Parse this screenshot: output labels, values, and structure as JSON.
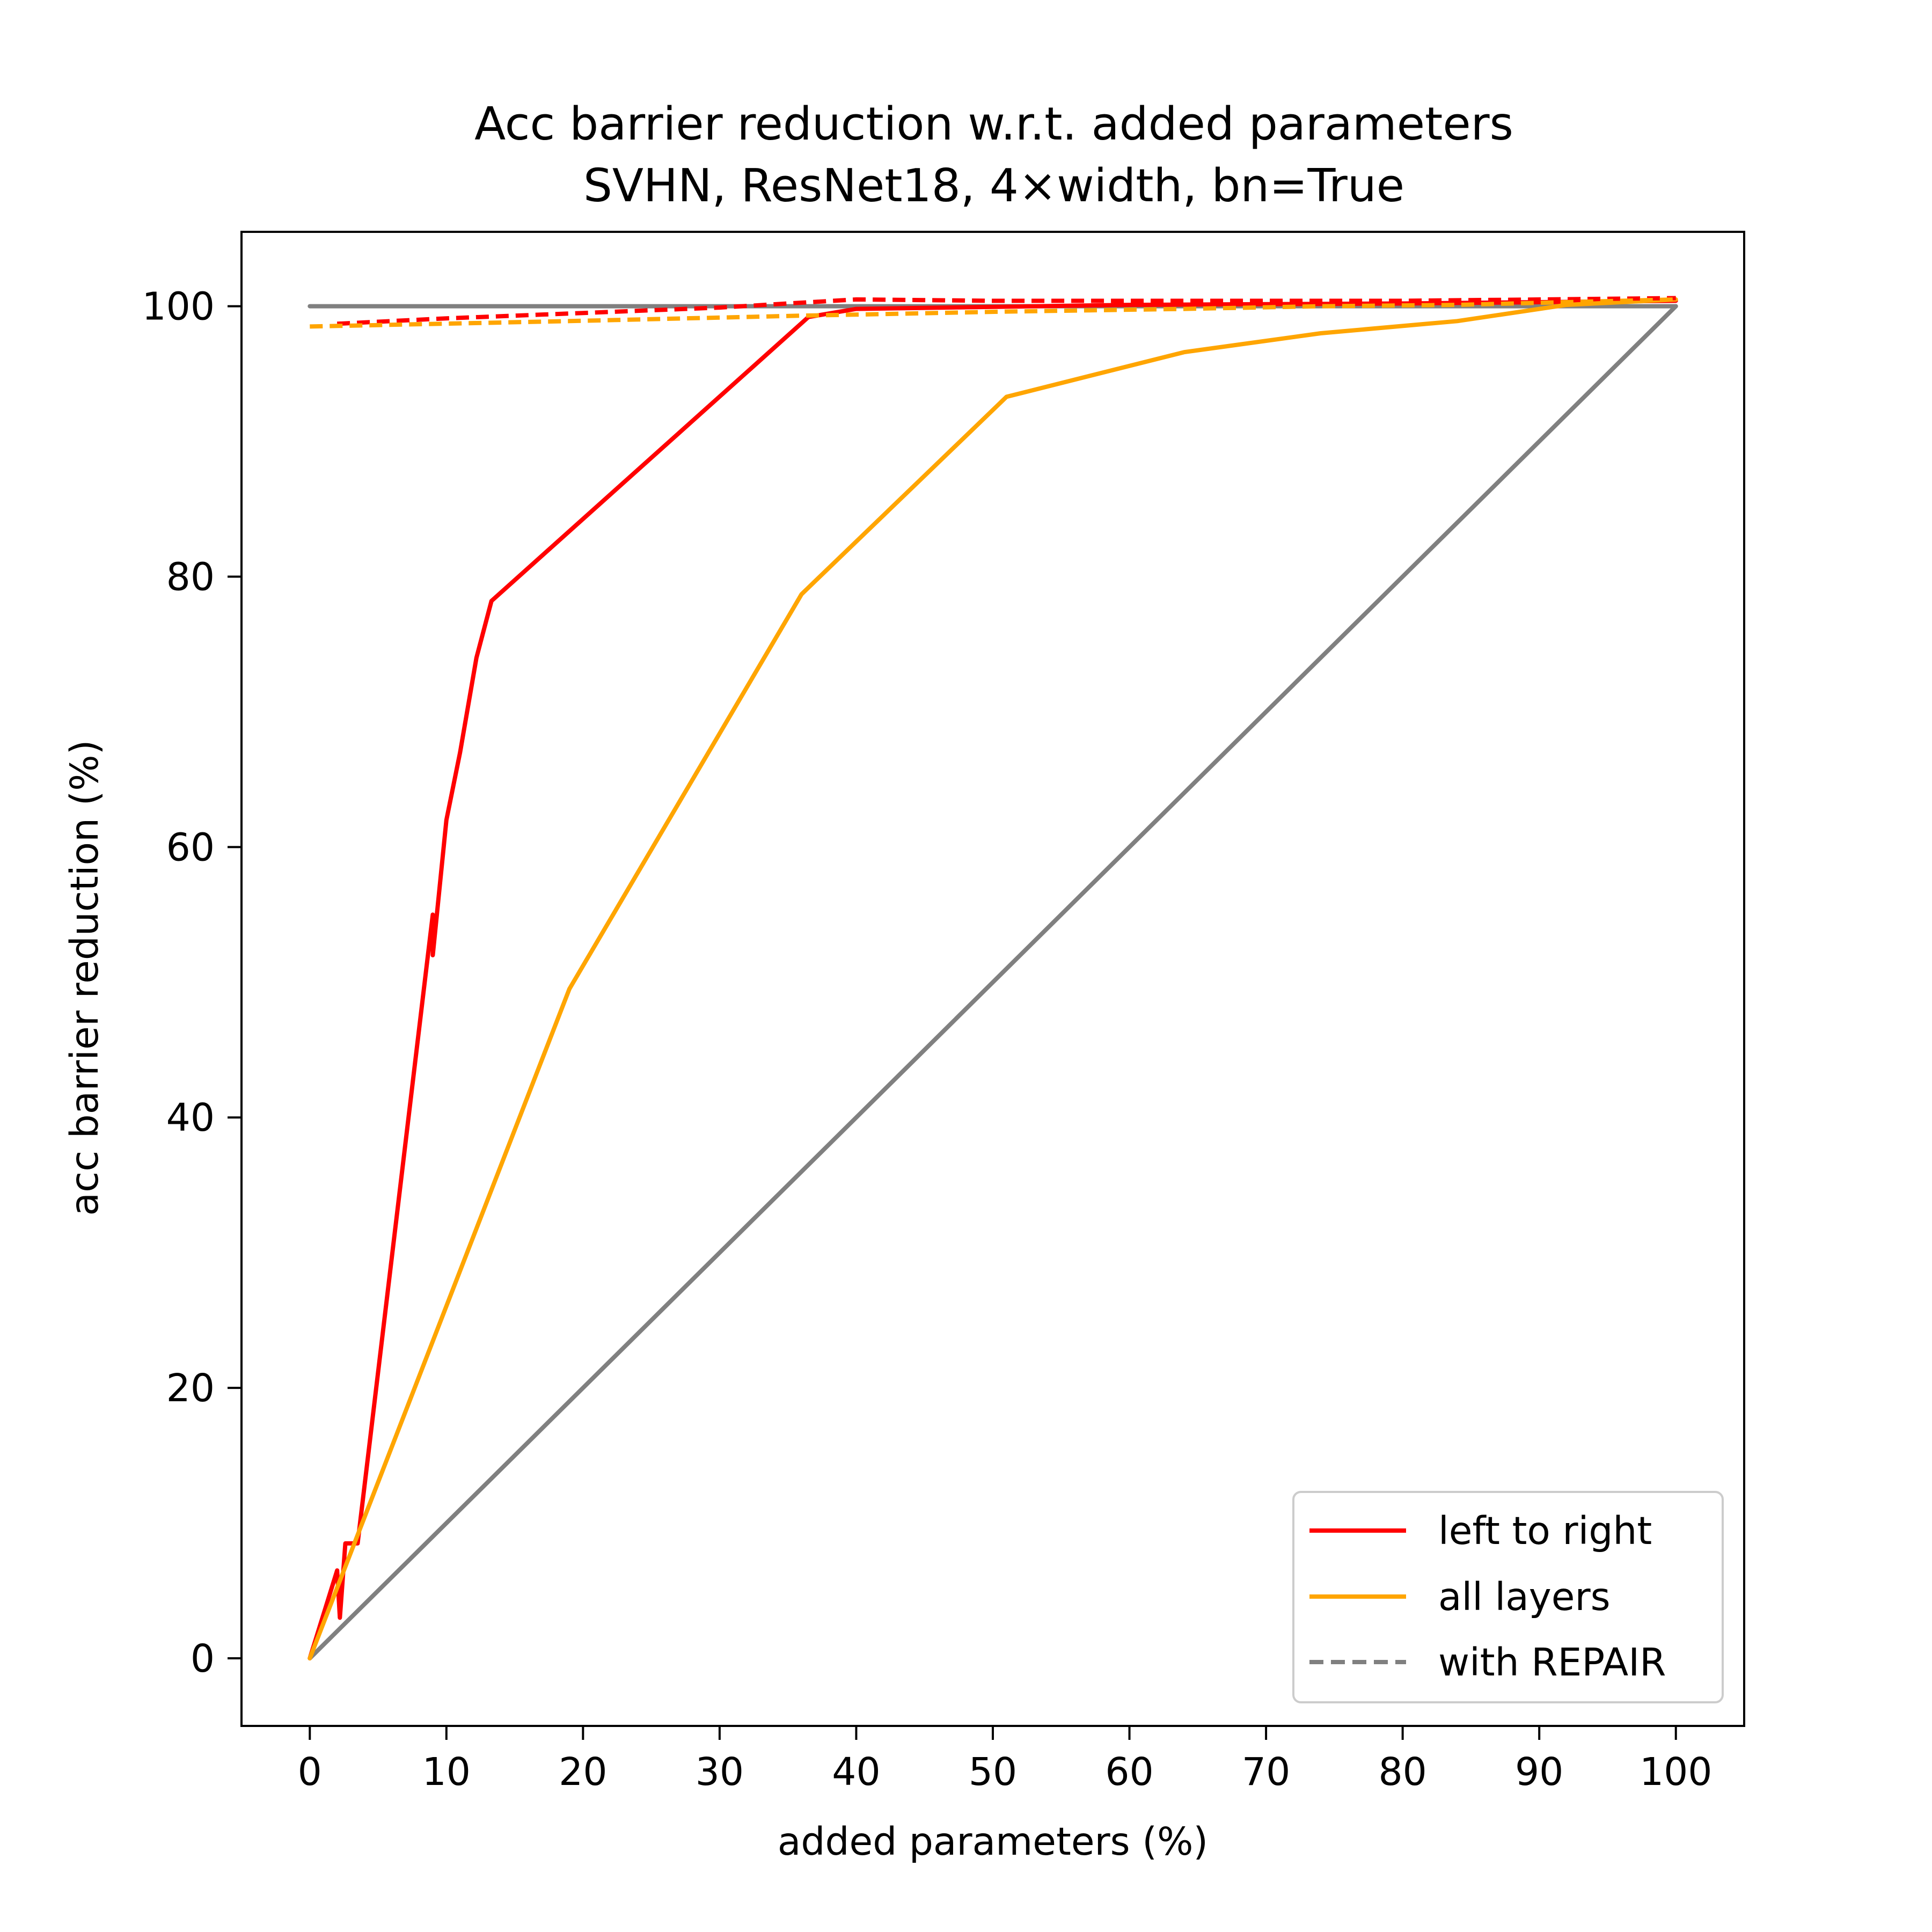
{
  "chart_data": {
    "type": "line",
    "title": [
      "Acc barrier reduction w.r.t. added parameters",
      "SVHN, ResNet18, 4×width, bn=True"
    ],
    "xlabel": "added parameters (%)",
    "ylabel": "acc barrier reduction (%)",
    "xlim": [
      -5,
      105
    ],
    "ylim": [
      -5,
      105.5
    ],
    "xticks": [
      0,
      10,
      20,
      30,
      40,
      50,
      60,
      70,
      80,
      90,
      100
    ],
    "yticks": [
      0,
      20,
      40,
      60,
      80,
      100
    ],
    "grid": false,
    "legend_position": "bottom-right",
    "legend": [
      {
        "label": "left to right",
        "color": "#ff0000",
        "style": "solid"
      },
      {
        "label": "all layers",
        "color": "#ffa500",
        "style": "solid"
      },
      {
        "label": "with REPAIR",
        "color": "#808080",
        "style": "dashed"
      }
    ],
    "series": [
      {
        "color": "#808080",
        "style": "solid",
        "points": [
          [
            0,
            100
          ],
          [
            100,
            100
          ]
        ]
      },
      {
        "color": "#808080",
        "style": "solid",
        "points": [
          [
            0,
            0
          ],
          [
            100,
            100
          ]
        ]
      },
      {
        "name": "left to right",
        "color": "#ff0000",
        "style": "solid",
        "points": [
          [
            0,
            0
          ],
          [
            2.0,
            6.5
          ],
          [
            2.2,
            3.0
          ],
          [
            2.6,
            8.5
          ],
          [
            3.5,
            8.5
          ],
          [
            9.0,
            55.0
          ],
          [
            9.0,
            52.0
          ],
          [
            10.0,
            62.0
          ],
          [
            11.0,
            67.0
          ],
          [
            12.2,
            74.0
          ],
          [
            13.3,
            78.2
          ],
          [
            36.5,
            99.2
          ],
          [
            40,
            99.8
          ],
          [
            60,
            100.1
          ],
          [
            80,
            100.2
          ],
          [
            100,
            100.4
          ]
        ]
      },
      {
        "name": "all layers",
        "color": "#ffa500",
        "style": "solid",
        "points": [
          [
            0,
            0
          ],
          [
            19,
            49.5
          ],
          [
            36,
            78.7
          ],
          [
            51,
            93.3
          ],
          [
            64,
            96.6
          ],
          [
            74,
            98.0
          ],
          [
            84,
            98.9
          ],
          [
            92,
            100.1
          ],
          [
            100,
            100.5
          ]
        ]
      },
      {
        "name": "left to right, with REPAIR",
        "color": "#ff0000",
        "style": "dashed",
        "points": [
          [
            2,
            98.7
          ],
          [
            10,
            99.1
          ],
          [
            20,
            99.5
          ],
          [
            30,
            99.9
          ],
          [
            35,
            100.2
          ],
          [
            40,
            100.5
          ],
          [
            50,
            100.4
          ],
          [
            60,
            100.4
          ],
          [
            70,
            100.4
          ],
          [
            80,
            100.4
          ],
          [
            90,
            100.5
          ],
          [
            100,
            100.6
          ]
        ]
      },
      {
        "name": "all layers, with REPAIR",
        "color": "#ffa500",
        "style": "dashed",
        "points": [
          [
            0,
            98.5
          ],
          [
            19,
            98.9
          ],
          [
            36,
            99.3
          ],
          [
            51,
            99.6
          ],
          [
            64,
            99.8
          ],
          [
            74,
            100.0
          ],
          [
            84,
            100.1
          ],
          [
            92,
            100.3
          ],
          [
            100,
            100.5
          ]
        ]
      }
    ]
  }
}
